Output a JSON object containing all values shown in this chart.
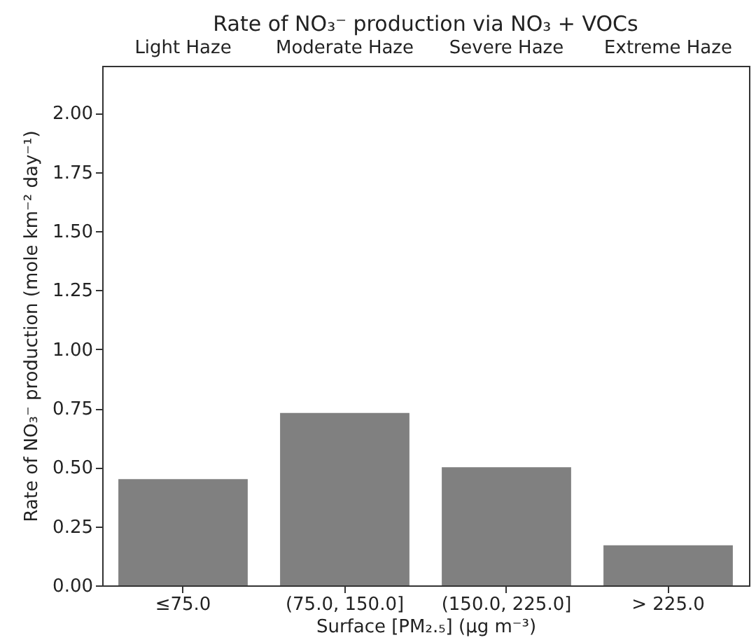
{
  "chart_data": {
    "type": "bar",
    "title": "Rate of NO₃⁻ production via NO₃ + VOCs",
    "xlabel": "Surface [PM₂.₅] (μg m⁻³)",
    "ylabel": "Rate of NO₃⁻ production (mole km⁻² day⁻¹)",
    "categories": [
      "≤75.0",
      "(75.0, 150.0]",
      "(150.0, 225.0]",
      "> 225.0"
    ],
    "values": [
      0.45,
      0.73,
      0.5,
      0.17
    ],
    "color": "#808080",
    "ylim": [
      0,
      2.2
    ],
    "yticks": [
      {
        "value": 0,
        "label": "0.00"
      },
      {
        "value": 0.25,
        "label": "0.25"
      },
      {
        "value": 0.5,
        "label": "0.50"
      },
      {
        "value": 0.75,
        "label": "0.75"
      },
      {
        "value": 1,
        "label": "1.00"
      },
      {
        "value": 1.25,
        "label": "1.25"
      },
      {
        "value": 1.5,
        "label": "1.50"
      },
      {
        "value": 1.75,
        "label": "1.75"
      },
      {
        "value": 2,
        "label": "2.00"
      }
    ],
    "grid": false,
    "annotations": [
      "Light Haze",
      "Moderate Haze",
      "Severe Haze",
      "Extreme Haze"
    ]
  }
}
